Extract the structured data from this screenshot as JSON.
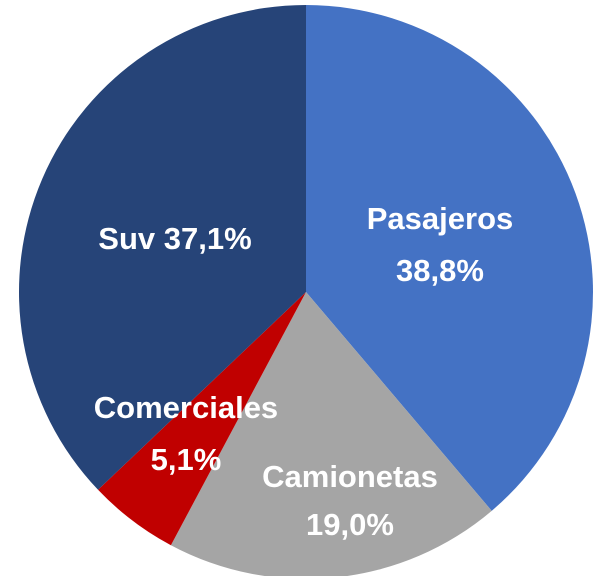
{
  "chart_data": {
    "type": "pie",
    "categories": [
      "Pasajeros",
      "Camionetas",
      "Comerciales",
      "Suv"
    ],
    "values": [
      38.8,
      19.0,
      5.1,
      37.1
    ],
    "value_labels": [
      "38,8%",
      "19,0%",
      "5,1%",
      "37,1%"
    ],
    "colors": [
      "#4472c4",
      "#a5a5a5",
      "#c00000",
      "#264478"
    ]
  }
}
